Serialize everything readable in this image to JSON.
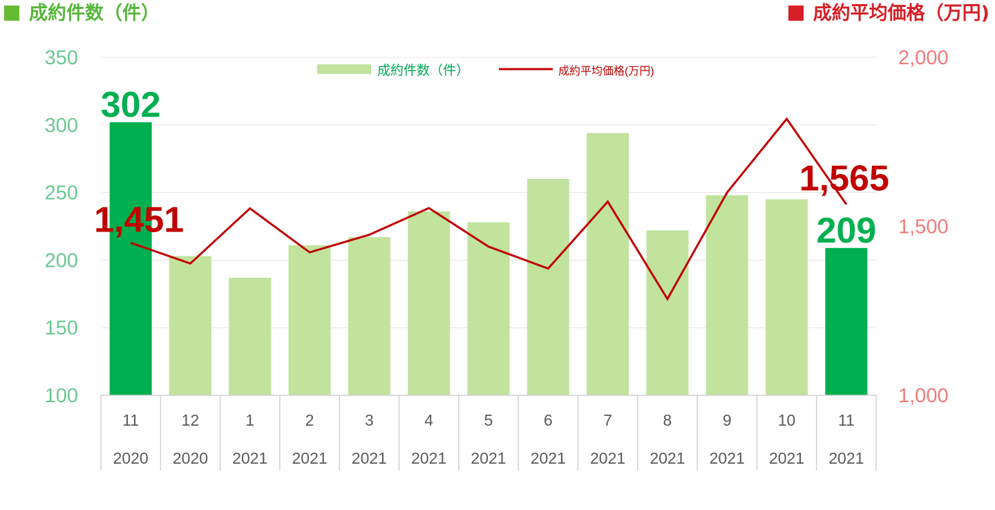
{
  "titles": {
    "left": "成約件数（件）",
    "right": "成約平均価格（万円)"
  },
  "chart_data": {
    "type": "bar",
    "categories": [
      {
        "month": "11",
        "year": "2020"
      },
      {
        "month": "12",
        "year": "2020"
      },
      {
        "month": "1",
        "year": "2021"
      },
      {
        "month": "2",
        "year": "2021"
      },
      {
        "month": "3",
        "year": "2021"
      },
      {
        "month": "4",
        "year": "2021"
      },
      {
        "month": "5",
        "year": "2021"
      },
      {
        "month": "6",
        "year": "2021"
      },
      {
        "month": "7",
        "year": "2021"
      },
      {
        "month": "8",
        "year": "2021"
      },
      {
        "month": "9",
        "year": "2021"
      },
      {
        "month": "10",
        "year": "2021"
      },
      {
        "month": "11",
        "year": "2021"
      }
    ],
    "series": [
      {
        "name": "成約件数（件）",
        "type": "bar",
        "axis": "left",
        "values": [
          302,
          203,
          187,
          211,
          217,
          236,
          228,
          260,
          294,
          222,
          248,
          245,
          209
        ],
        "highlight": [
          0,
          12
        ],
        "color": "#c1e39d",
        "highlight_color": "#00b050"
      },
      {
        "name": "成約平均価格(万円)",
        "type": "line",
        "axis": "right",
        "values": [
          1451,
          1390,
          1553,
          1423,
          1475,
          1554,
          1440,
          1375,
          1573,
          1285,
          1600,
          1818,
          1565
        ],
        "color": "#c00000"
      }
    ],
    "data_labels": [
      {
        "series": 0,
        "index": 0,
        "text": "302"
      },
      {
        "series": 0,
        "index": 12,
        "text": "209"
      },
      {
        "series": 1,
        "index": 0,
        "text": "1,451"
      },
      {
        "series": 1,
        "index": 12,
        "text": "1,565"
      }
    ],
    "y_left": {
      "min": 100,
      "max": 350,
      "ticks": [
        "100",
        "150",
        "200",
        "250",
        "300",
        "350"
      ],
      "color": "#6cc792"
    },
    "y_right": {
      "min": 1000,
      "max": 2000,
      "ticks": [
        "1,000",
        "1,500",
        "2,000"
      ],
      "color": "#f07a7a"
    },
    "grid": true,
    "legend": "top-center"
  }
}
